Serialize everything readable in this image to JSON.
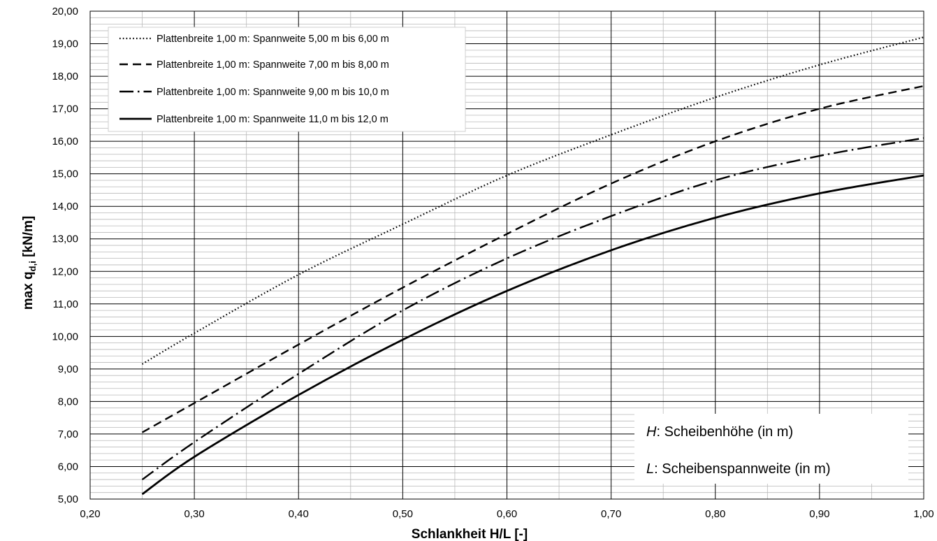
{
  "chart_data": {
    "type": "line",
    "title": "",
    "xlabel": "Schlankheit H/L [-]",
    "ylabel": {
      "prefix": "max q",
      "sub": "d,i",
      "suffix": " [kN/m]"
    },
    "xlim": [
      0.2,
      1.0
    ],
    "ylim": [
      5.0,
      20.0
    ],
    "x_ticks": [
      "0,20",
      "0,30",
      "0,40",
      "0,50",
      "0,60",
      "0,70",
      "0,80",
      "0,90",
      "1,00"
    ],
    "y_ticks": [
      "5,00",
      "6,00",
      "7,00",
      "8,00",
      "9,00",
      "10,00",
      "11,00",
      "12,00",
      "13,00",
      "14,00",
      "15,00",
      "16,00",
      "17,00",
      "18,00",
      "19,00",
      "20,00"
    ],
    "grid": true,
    "legend_position": "top-left",
    "x": [
      0.25,
      0.3,
      0.4,
      0.5,
      0.6,
      0.7,
      0.8,
      0.9,
      1.0
    ],
    "series": [
      {
        "name": "Plattenbreite 1,00 m: Spannweite 5,00 m bis 6,00 m",
        "style": "dotted",
        "values": [
          9.15,
          10.1,
          11.9,
          13.45,
          14.95,
          16.2,
          17.35,
          18.35,
          19.2
        ]
      },
      {
        "name": "Plattenbreite 1,00 m: Spannweite 7,00 m bis 8,00 m",
        "style": "dashed",
        "values": [
          7.05,
          7.95,
          9.75,
          11.5,
          13.15,
          14.7,
          16.0,
          17.0,
          17.7
        ]
      },
      {
        "name": "Plattenbreite 1,00 m: Spannweite 9,00 m bis 10,0 m",
        "style": "dashdot",
        "values": [
          5.6,
          6.75,
          8.85,
          10.8,
          12.4,
          13.7,
          14.8,
          15.55,
          16.1
        ]
      },
      {
        "name": "Plattenbreite 1,00 m: Spannweite 11,0 m bis 12,0 m",
        "style": "solid",
        "values": [
          5.15,
          6.3,
          8.2,
          9.9,
          11.4,
          12.65,
          13.65,
          14.4,
          14.95
        ]
      }
    ],
    "annotations": [
      {
        "var": "H",
        "text": ": Scheibenhöhe (in m)"
      },
      {
        "var": "L",
        "text": ":  Scheibenspannweite (in m)"
      }
    ]
  }
}
